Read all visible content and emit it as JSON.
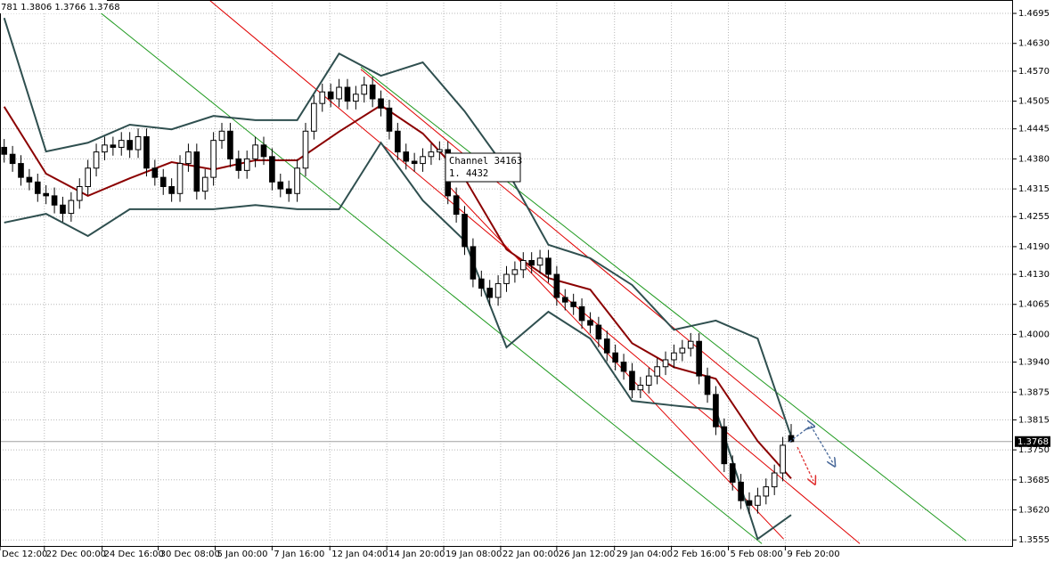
{
  "chart_data": {
    "type": "candlestick",
    "header_text": "781 1.3806 1.3766 1.3768",
    "tooltip": [
      "Channel 34163",
      "1. 4432"
    ],
    "xlim": [
      -0.5,
      120.5
    ],
    "xticks": [
      {
        "value": -0.5,
        "label": "Dec 12:00"
      },
      {
        "value": 4.8,
        "label": "22 Dec 00:00"
      },
      {
        "value": 11.7,
        "label": "24 Dec 16:00"
      },
      {
        "value": 18.4,
        "label": "30 Dec 08:00"
      },
      {
        "value": 25.2,
        "label": "5 Jan 00:00"
      },
      {
        "value": 32,
        "label": "7 Jan 16:00"
      },
      {
        "value": 38.9,
        "label": "12 Jan 04:00"
      },
      {
        "value": 45.7,
        "label": "14 Jan 20:00"
      },
      {
        "value": 52.5,
        "label": "19 Jan 08:00"
      },
      {
        "value": 59.3,
        "label": "22 Jan 00:00"
      },
      {
        "value": 66,
        "label": "26 Jan 12:00"
      },
      {
        "value": 72.9,
        "label": "29 Jan 04:00"
      },
      {
        "value": 79.7,
        "label": "2 Feb 16:00"
      },
      {
        "value": 86.5,
        "label": "5 Feb 08:00"
      },
      {
        "value": 93.3,
        "label": "9 Feb 20:00"
      }
    ],
    "ylim": [
      1.354,
      1.4724
    ],
    "yticks": [
      1.4695,
      {
        "value": 1.463,
        "label": "1.4630"
      },
      {
        "value": 1.457,
        "label": "1.4570"
      },
      1.4505,
      1.4445,
      {
        "value": 1.438,
        "label": "1.4380"
      },
      1.4315,
      1.4255,
      {
        "value": 1.419,
        "label": "1.4190"
      },
      {
        "value": 1.413,
        "label": "1.4130"
      },
      1.4065,
      {
        "value": 1.4,
        "label": "1.4000"
      },
      {
        "value": 1.394,
        "label": "1.3940"
      },
      1.3875,
      1.3815,
      {
        "value": 1.375,
        "label": "1.3750"
      },
      1.3685,
      {
        "value": 1.362,
        "label": "1.3620"
      },
      1.3555
    ],
    "grid": true,
    "last_price": {
      "value": 1.3768,
      "label": "1.3768"
    },
    "open": [
      1.4405,
      1.439,
      1.437,
      1.434,
      1.433,
      1.4305,
      1.43,
      1.428,
      1.4262,
      1.429,
      1.432,
      1.436,
      1.4395,
      1.441,
      1.4405,
      1.442,
      1.44,
      1.4428,
      1.436,
      1.434,
      1.432,
      1.4305,
      1.437,
      1.4395,
      1.431,
      1.434,
      1.442,
      1.444,
      1.438,
      1.4355,
      1.438,
      1.441,
      1.4385,
      1.433,
      1.4315,
      1.4305,
      1.436,
      1.444,
      1.45,
      1.4525,
      1.451,
      1.4535,
      1.4505,
      1.452,
      1.454,
      1.451,
      1.449,
      1.444,
      1.4395,
      1.4375,
      1.437,
      1.4385,
      1.4395,
      1.44,
      1.43,
      1.426,
      1.419,
      1.412,
      1.41,
      1.408,
      1.411,
      1.413,
      1.414,
      1.416,
      1.415,
      1.4165,
      1.413,
      1.408,
      1.407,
      1.406,
      1.403,
      1.402,
      1.399,
      1.396,
      1.394,
      1.392,
      1.388,
      1.389,
      1.391,
      1.393,
      1.3945,
      1.396,
      1.397,
      1.3985,
      1.391,
      1.387,
      1.38,
      1.372,
      1.368,
      1.364,
      1.363,
      1.365,
      1.367,
      1.37,
      1.3781
    ],
    "high": [
      1.4423,
      1.4408,
      1.4388,
      1.4358,
      1.4348,
      1.4323,
      1.4318,
      1.4298,
      1.4308,
      1.4338,
      1.4378,
      1.4413,
      1.4428,
      1.4428,
      1.4438,
      1.4438,
      1.4446,
      1.4446,
      1.4378,
      1.4358,
      1.4338,
      1.4388,
      1.4413,
      1.4413,
      1.4358,
      1.4438,
      1.4458,
      1.4458,
      1.4398,
      1.4398,
      1.4428,
      1.4428,
      1.4403,
      1.4348,
      1.4333,
      1.4378,
      1.4458,
      1.4518,
      1.4543,
      1.4543,
      1.4553,
      1.4553,
      1.4538,
      1.4558,
      1.4558,
      1.4528,
      1.4508,
      1.4458,
      1.4413,
      1.4393,
      1.4403,
      1.4413,
      1.4418,
      1.4418,
      1.4318,
      1.4278,
      1.4208,
      1.4138,
      1.4118,
      1.4128,
      1.4148,
      1.4158,
      1.4178,
      1.4178,
      1.4183,
      1.4183,
      1.4148,
      1.4098,
      1.4088,
      1.4078,
      1.4048,
      1.4038,
      1.4008,
      1.3978,
      1.3958,
      1.3938,
      1.3908,
      1.3928,
      1.3948,
      1.3963,
      1.3978,
      1.3988,
      1.4003,
      1.4003,
      1.3928,
      1.3888,
      1.3818,
      1.3738,
      1.3698,
      1.3658,
      1.3668,
      1.3688,
      1.3718,
      1.3778,
      1.3806
    ],
    "low": [
      1.4372,
      1.4352,
      1.4322,
      1.4312,
      1.4287,
      1.4282,
      1.4262,
      1.4244,
      1.4244,
      1.4272,
      1.4302,
      1.4342,
      1.4377,
      1.4387,
      1.4387,
      1.4382,
      1.4382,
      1.4342,
      1.4322,
      1.4302,
      1.4287,
      1.4287,
      1.4352,
      1.4292,
      1.4292,
      1.4322,
      1.4402,
      1.4362,
      1.4337,
      1.4337,
      1.4362,
      1.4367,
      1.4312,
      1.4297,
      1.4287,
      1.4287,
      1.4342,
      1.4422,
      1.4482,
      1.4492,
      1.4492,
      1.4487,
      1.4487,
      1.4502,
      1.4492,
      1.4472,
      1.4422,
      1.4377,
      1.4357,
      1.4352,
      1.4352,
      1.4367,
      1.4377,
      1.4282,
      1.4242,
      1.4172,
      1.4102,
      1.4082,
      1.4062,
      1.4062,
      1.4092,
      1.4112,
      1.4122,
      1.4132,
      1.4132,
      1.4112,
      1.4062,
      1.4052,
      1.4042,
      1.4012,
      1.4002,
      1.3972,
      1.3942,
      1.3922,
      1.3902,
      1.3862,
      1.3862,
      1.3872,
      1.3892,
      1.3912,
      1.3927,
      1.3942,
      1.3952,
      1.3892,
      1.3852,
      1.3782,
      1.3702,
      1.3662,
      1.3622,
      1.3612,
      1.3612,
      1.3632,
      1.3652,
      1.3682,
      1.3766
    ],
    "close": [
      1.439,
      1.437,
      1.434,
      1.433,
      1.4305,
      1.43,
      1.428,
      1.4262,
      1.429,
      1.432,
      1.436,
      1.4395,
      1.441,
      1.4405,
      1.442,
      1.44,
      1.4428,
      1.436,
      1.434,
      1.432,
      1.4305,
      1.437,
      1.4395,
      1.431,
      1.434,
      1.442,
      1.444,
      1.438,
      1.4355,
      1.438,
      1.441,
      1.4385,
      1.433,
      1.4315,
      1.4305,
      1.436,
      1.444,
      1.45,
      1.4525,
      1.451,
      1.4535,
      1.4505,
      1.452,
      1.454,
      1.451,
      1.449,
      1.444,
      1.4395,
      1.4375,
      1.437,
      1.4385,
      1.4395,
      1.44,
      1.43,
      1.426,
      1.419,
      1.412,
      1.41,
      1.408,
      1.411,
      1.413,
      1.414,
      1.416,
      1.415,
      1.4165,
      1.413,
      1.408,
      1.407,
      1.406,
      1.403,
      1.402,
      1.399,
      1.396,
      1.394,
      1.392,
      1.388,
      1.389,
      1.391,
      1.393,
      1.3945,
      1.396,
      1.397,
      1.3985,
      1.391,
      1.387,
      1.38,
      1.372,
      1.368,
      1.364,
      1.363,
      1.365,
      1.367,
      1.37,
      1.376,
      1.3768
    ],
    "lines": [
      {
        "color": "#2f4f4f",
        "x": [
          0,
          5,
          10,
          15,
          20,
          25,
          30,
          35,
          40,
          45,
          50,
          55,
          60,
          65,
          70,
          75,
          80,
          85,
          90,
          94
        ],
        "values": [
          1.4685,
          1.4396,
          1.4415,
          1.4454,
          1.4444,
          1.4473,
          1.4464,
          1.4464,
          1.4608,
          1.456,
          1.4589,
          1.4483,
          1.4357,
          1.4194,
          1.4165,
          1.4107,
          1.401,
          1.403,
          1.3991,
          1.3779
        ]
      },
      {
        "color": "#2f4f4f",
        "x": [
          0,
          5,
          10,
          15,
          20,
          25,
          30,
          35,
          40,
          45,
          50,
          55,
          60,
          65,
          70,
          75,
          80,
          85,
          90,
          94
        ],
        "values": [
          1.4242,
          1.4261,
          1.4213,
          1.4271,
          1.4271,
          1.4271,
          1.428,
          1.4271,
          1.4271,
          1.4415,
          1.429,
          1.4203,
          1.3972,
          1.4049,
          1.3991,
          1.3856,
          1.3846,
          1.3837,
          1.3557,
          1.3609
        ]
      },
      {
        "color": "#8b0000",
        "x": [
          0,
          5,
          10,
          15,
          20,
          25,
          30,
          35,
          40,
          45,
          50,
          55,
          60,
          65,
          70,
          75,
          80,
          85,
          90,
          94
        ],
        "values": [
          1.4493,
          1.4348,
          1.43,
          1.4338,
          1.4373,
          1.4357,
          1.4377,
          1.4377,
          1.4439,
          1.4496,
          1.4435,
          1.4338,
          1.4184,
          1.4122,
          1.4097,
          1.3981,
          1.3929,
          1.3904,
          1.3769,
          1.3688
        ]
      }
    ],
    "channels": [
      {
        "color": "#1f9a1f",
        "x": [
          9.6,
          90.5
        ],
        "values": [
          1.4724,
          1.3547
        ]
      },
      {
        "color": "#1f9a1f",
        "x": [
          42.6,
          114.9
        ],
        "values": [
          1.4579,
          1.3553
        ]
      },
      {
        "color": "#e00000",
        "x": [
          24.5,
          102.2
        ],
        "values": [
          1.4724,
          1.3547
        ]
      },
      {
        "color": "#e00000",
        "x": [
          42.6,
          93.1
        ],
        "values": [
          1.4574,
          1.3817
        ]
      },
      {
        "color": "#e00000",
        "x": [
          52.7,
          93.1
        ],
        "values": [
          1.4329,
          1.3557
        ]
      }
    ]
  }
}
